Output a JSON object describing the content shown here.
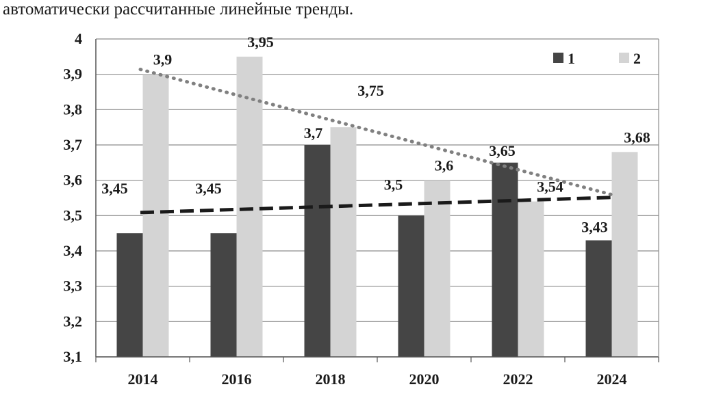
{
  "caption": "автоматически рассчитанные линейные тренды.",
  "chart_data": {
    "type": "bar",
    "categories": [
      "2014",
      "2016",
      "2018",
      "2020",
      "2022",
      "2024"
    ],
    "series": [
      {
        "name": "1",
        "values": [
          3.45,
          3.45,
          3.7,
          3.5,
          3.65,
          3.43
        ],
        "labels": [
          "3,45",
          "3,45",
          "3,7",
          "3,5",
          "3,65",
          "3,43"
        ],
        "color": "#454545"
      },
      {
        "name": "2",
        "values": [
          3.9,
          3.95,
          3.75,
          3.6,
          3.54,
          3.68
        ],
        "labels": [
          "3,9",
          "3,95",
          "3,75",
          "3,6",
          "3,54",
          "3,68"
        ],
        "color": "#d4d4d4"
      }
    ],
    "yticks": [
      "3,1",
      "3,2",
      "3,3",
      "3,4",
      "3,5",
      "3,6",
      "3,7",
      "3,8",
      "3,9",
      "4"
    ],
    "ylim": [
      3.1,
      4.0
    ],
    "grid": true,
    "legend_position": "top-right",
    "trendlines": [
      {
        "series": "1",
        "style": "dashed",
        "color": "#1a1a1a"
      },
      {
        "series": "2",
        "style": "dotted",
        "color": "#808080"
      }
    ]
  }
}
